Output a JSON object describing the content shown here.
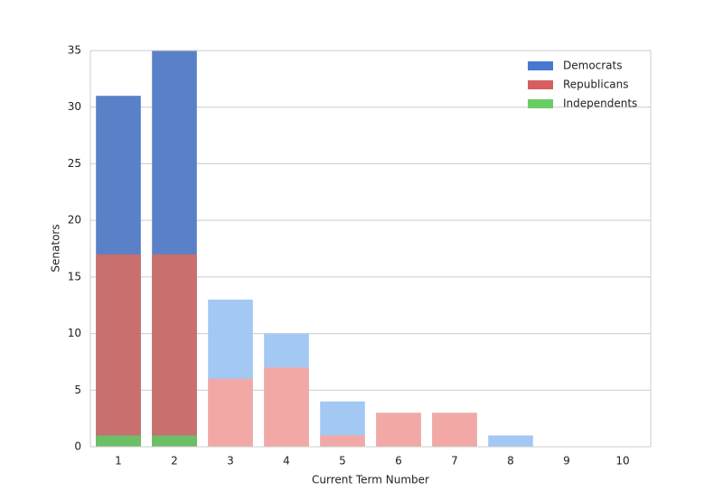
{
  "chart_data": {
    "type": "bar",
    "overlap": true,
    "x_label": "Current Term Number",
    "y_label": "Senators",
    "categories": [
      "1",
      "2",
      "3",
      "4",
      "5",
      "6",
      "7",
      "8",
      "9",
      "10"
    ],
    "series": [
      {
        "name": "Democrats",
        "color": "#4878cf",
        "values": [
          31,
          35,
          13,
          10,
          4,
          3,
          3,
          1,
          0,
          0
        ],
        "colors": [
          "#5a80c8",
          "#5a80c8",
          "#a2c8f3",
          "#a2c8f3",
          "#a2c8f3",
          "#a2c8f3",
          "#a2c8f3",
          "#a2c8f3",
          "#a2c8f3",
          "#a2c8f3"
        ]
      },
      {
        "name": "Republicans",
        "color": "#d65f5f",
        "values": [
          17,
          17,
          6,
          7,
          1,
          3,
          3,
          0,
          0,
          0
        ],
        "colors": [
          "#c96f6e",
          "#c96f6e",
          "#f2a9a6",
          "#f2a9a6",
          "#f2a9a6",
          "#f2a9a6",
          "#f2a9a6",
          "#f2a9a6",
          "#f2a9a6",
          "#f2a9a6"
        ]
      },
      {
        "name": "Independents",
        "color": "#6acc65",
        "values": [
          1,
          1,
          0,
          0,
          0,
          0,
          0,
          0,
          0,
          0
        ],
        "colors": [
          "#6cbf67",
          "#6cbf67",
          "#97f0aa",
          "#97f0aa",
          "#97f0aa",
          "#97f0aa",
          "#97f0aa",
          "#97f0aa",
          "#97f0aa",
          "#97f0aa"
        ]
      }
    ],
    "ylim": [
      0,
      35
    ],
    "yticks": [
      0,
      5,
      10,
      15,
      20,
      25,
      30,
      35
    ],
    "grid": true,
    "legend": "upper right"
  }
}
